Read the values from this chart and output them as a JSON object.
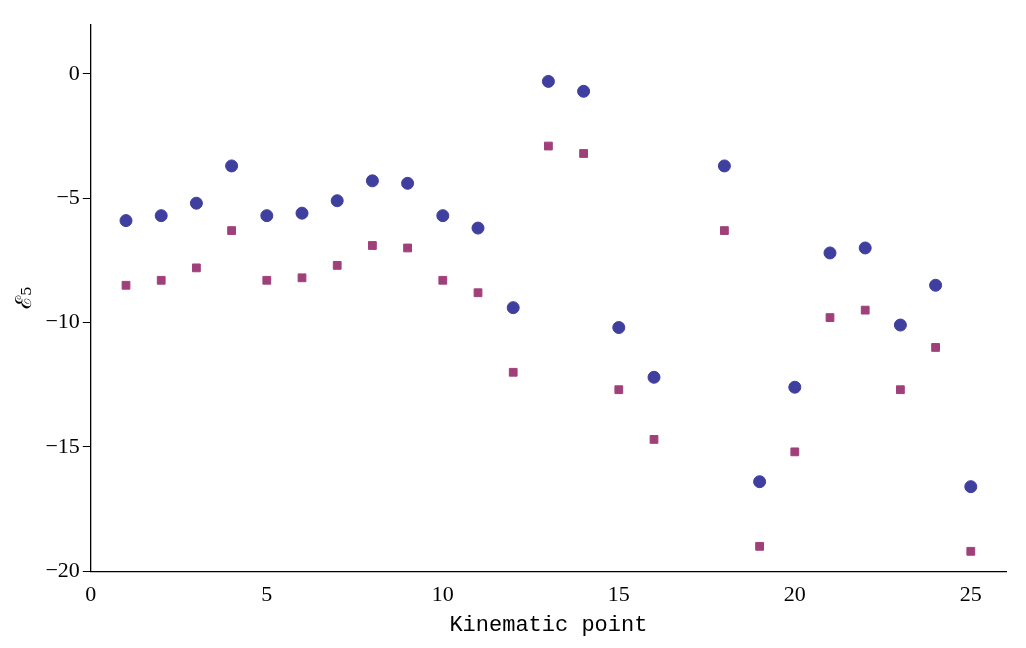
{
  "chart_data": {
    "type": "scatter",
    "xlabel": "Kinematic point",
    "ylabel": "ℰ₅",
    "x": [
      1,
      2,
      3,
      4,
      5,
      6,
      7,
      8,
      9,
      10,
      11,
      12,
      13,
      14,
      15,
      16,
      18,
      19,
      20,
      21,
      22,
      23,
      24,
      25
    ],
    "series": [
      {
        "color": "#3f3f9f",
        "marker": "circle",
        "values": [
          -5.9,
          -5.7,
          -5.2,
          -3.7,
          -5.7,
          -5.6,
          -5.1,
          -4.3,
          -4.4,
          -5.7,
          -6.2,
          -9.4,
          -0.3,
          -0.7,
          -10.2,
          -12.2,
          -3.7,
          -16.4,
          -12.6,
          -7.2,
          -7.0,
          -10.1,
          -8.5,
          -16.6
        ]
      },
      {
        "color": "#a0407a",
        "marker": "square",
        "values": [
          -8.5,
          -8.3,
          -7.8,
          -6.3,
          -8.3,
          -8.2,
          -7.7,
          -6.9,
          -7.0,
          -8.3,
          -8.8,
          -12.0,
          -2.9,
          -3.2,
          -12.7,
          -14.7,
          -6.3,
          -19.0,
          -15.2,
          -9.8,
          -9.5,
          -12.7,
          -11.0,
          -19.2
        ]
      }
    ],
    "xlim": [
      0,
      26
    ],
    "xticks": [
      0,
      5,
      10,
      15,
      20,
      25
    ],
    "ylim": [
      -20,
      2
    ],
    "yticks": [
      -20,
      -15,
      -10,
      -5,
      0
    ],
    "grid": false,
    "legend": false
  }
}
